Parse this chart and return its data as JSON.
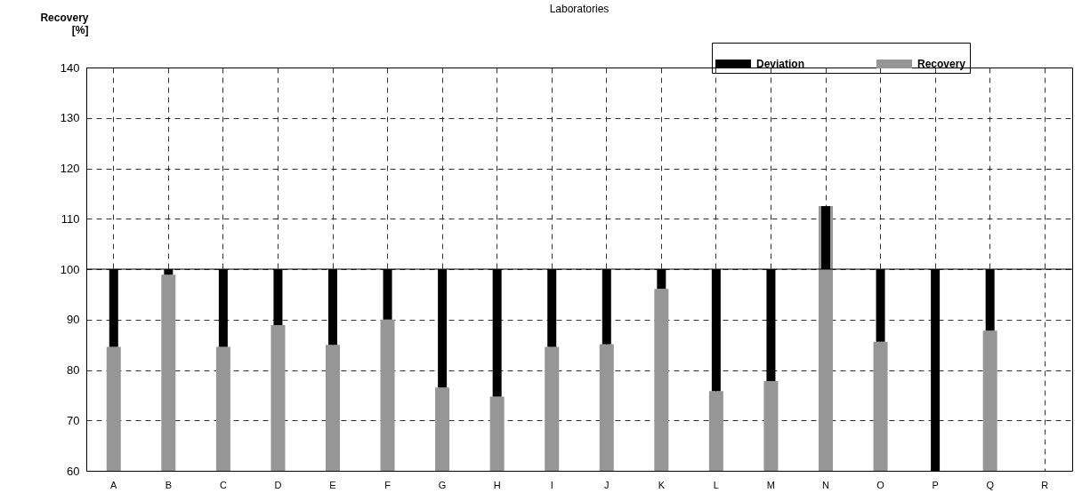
{
  "chart_data": {
    "type": "bar",
    "title": "Laboratories",
    "ylabel": "Recovery [%]",
    "categories": [
      "A",
      "B",
      "C",
      "D",
      "E",
      "F",
      "G",
      "H",
      "I",
      "J",
      "K",
      "L",
      "M",
      "N",
      "O",
      "P",
      "Q",
      "R"
    ],
    "series": [
      {
        "name": "Deviation",
        "color": "#000000",
        "base": [
          100,
          100,
          100,
          100,
          100,
          100,
          100,
          100,
          100,
          100,
          100,
          100,
          100,
          100,
          100,
          100,
          100,
          null
        ],
        "values": [
          -15.4,
          -1.1,
          -15.4,
          -11.1,
          -15,
          -10,
          -23.5,
          -25.3,
          -15.4,
          -14.9,
          -3.9,
          -24.2,
          -22.2,
          12.5,
          -14.4,
          -40,
          -12.2,
          null
        ]
      },
      {
        "name": "Recovery",
        "color": "#969696",
        "values": [
          84.6,
          98.9,
          84.6,
          88.9,
          85,
          90,
          76.5,
          74.7,
          84.6,
          85.1,
          96.1,
          75.8,
          77.8,
          112.5,
          85.6,
          null,
          87.8,
          null
        ]
      }
    ],
    "ylim": [
      60,
      140
    ],
    "yticks": [
      60,
      70,
      80,
      90,
      100,
      110,
      120,
      130,
      140
    ],
    "grid": true,
    "legend": "top right",
    "ref_lines": [
      {
        "axis": "y",
        "value": 100
      }
    ]
  }
}
